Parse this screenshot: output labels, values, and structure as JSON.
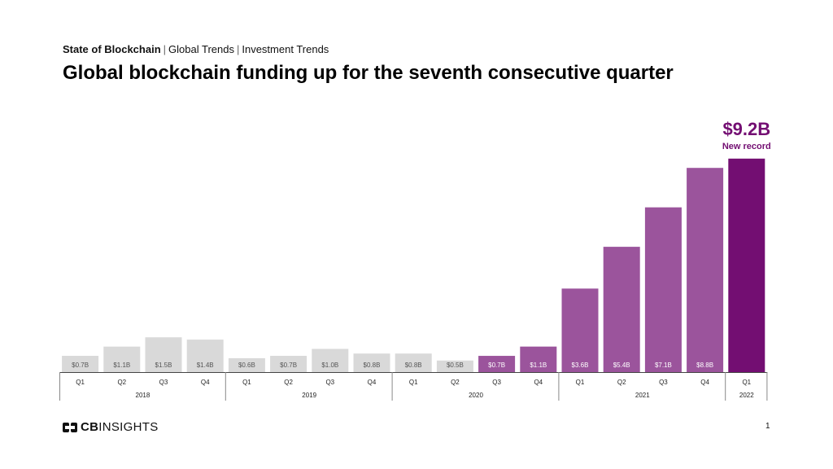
{
  "header": {
    "breadcrumb": [
      {
        "label": "State of Blockchain"
      },
      {
        "label": "Global Trends"
      },
      {
        "label": "Investment Trends"
      }
    ],
    "title": "Global blockchain funding up for the seventh consecutive quarter"
  },
  "chart_data": {
    "type": "bar",
    "title": "Global blockchain funding up for the seventh consecutive quarter",
    "xlabel": "",
    "ylabel": "",
    "ylim": [
      0,
      10
    ],
    "grid": false,
    "legend": "none",
    "categories": [
      "Q1",
      "Q2",
      "Q3",
      "Q4",
      "Q1",
      "Q2",
      "Q3",
      "Q4",
      "Q1",
      "Q2",
      "Q3",
      "Q4",
      "Q1",
      "Q2",
      "Q3",
      "Q4",
      "Q1"
    ],
    "years": [
      {
        "label": "2018",
        "quarters": 4
      },
      {
        "label": "2019",
        "quarters": 4
      },
      {
        "label": "2020",
        "quarters": 4
      },
      {
        "label": "2021",
        "quarters": 4
      },
      {
        "label": "2022",
        "quarters": 1
      }
    ],
    "values": [
      0.7,
      1.1,
      1.5,
      1.4,
      0.6,
      0.7,
      1.0,
      0.8,
      0.8,
      0.5,
      0.7,
      1.1,
      3.6,
      5.4,
      7.1,
      8.8,
      9.2
    ],
    "labels": [
      "$0.7B",
      "$1.1B",
      "$1.5B",
      "$1.4B",
      "$0.6B",
      "$0.7B",
      "$1.0B",
      "$0.8B",
      "$0.8B",
      "$0.5B",
      "$0.7B",
      "$1.1B",
      "$3.6B",
      "$5.4B",
      "$7.1B",
      "$8.8B",
      ""
    ],
    "colors": [
      "#d9d9d9",
      "#d9d9d9",
      "#d9d9d9",
      "#d9d9d9",
      "#d9d9d9",
      "#d9d9d9",
      "#d9d9d9",
      "#d9d9d9",
      "#d9d9d9",
      "#d9d9d9",
      "#9b549c",
      "#9b549c",
      "#9b549c",
      "#9b549c",
      "#9b549c",
      "#9b549c",
      "#730e72"
    ],
    "callout": {
      "value_label": "$9.2B",
      "note": "New record",
      "color": "#730e72"
    }
  },
  "footer": {
    "logo_text_bold": "CB",
    "logo_text": "INSIGHTS",
    "page_number": "1"
  }
}
